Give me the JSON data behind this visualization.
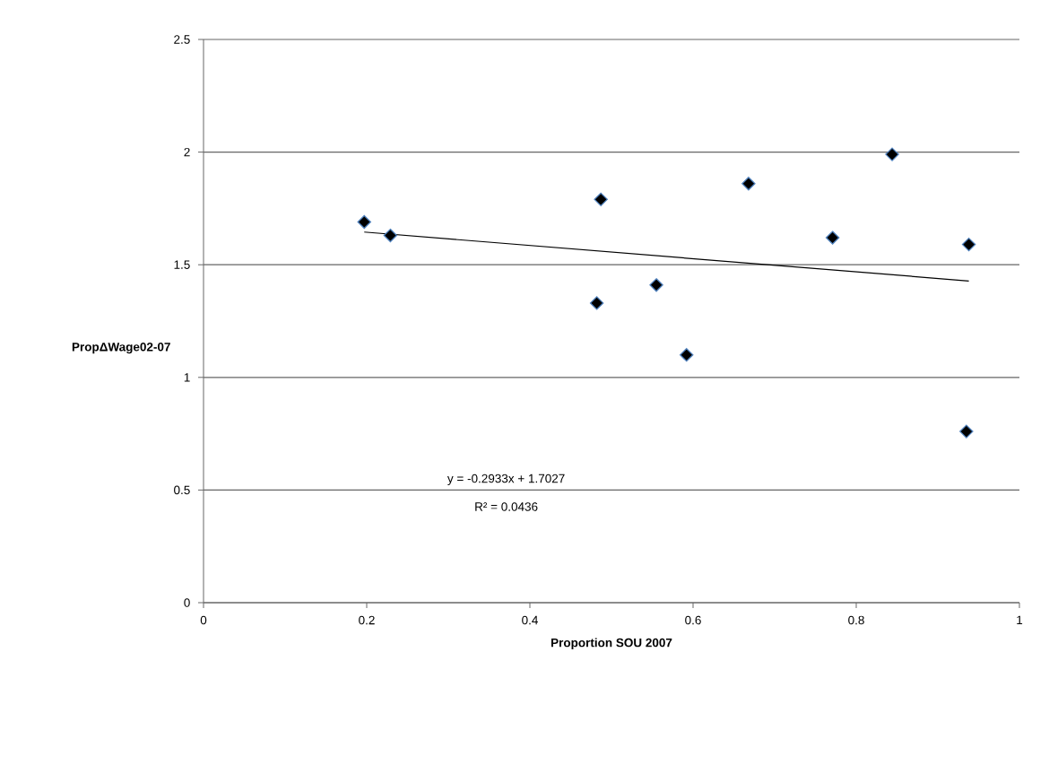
{
  "chart_data": {
    "type": "scatter",
    "xlabel": "Proportion SOU 2007",
    "ylabel": "PropΔWage02-07",
    "xlim": [
      0,
      1
    ],
    "xticks": [
      0,
      0.2,
      0.4,
      0.6,
      0.8,
      1
    ],
    "ylim": [
      0,
      2.5
    ],
    "yticks": [
      0,
      0.5,
      1,
      1.5,
      2,
      2.5
    ],
    "grid": "y",
    "annotations": [
      "y = -0.2933x + 1.7027",
      "R² = 0.0436"
    ],
    "series": [
      {
        "color": "#000000",
        "marker": "diamond",
        "x": [
          0.197,
          0.229,
          0.487,
          0.482,
          0.555,
          0.592,
          0.668,
          0.771,
          0.844,
          0.938,
          0.935
        ],
        "values": [
          1.69,
          1.63,
          1.79,
          1.33,
          1.41,
          1.1,
          1.86,
          1.62,
          1.99,
          1.59,
          0.76
        ]
      },
      {
        "type": "line",
        "color": "#000000",
        "marker": "none",
        "line_style": "solid",
        "x": [
          0.197,
          0.938
        ],
        "values": [
          1.645,
          1.428
        ]
      }
    ]
  }
}
